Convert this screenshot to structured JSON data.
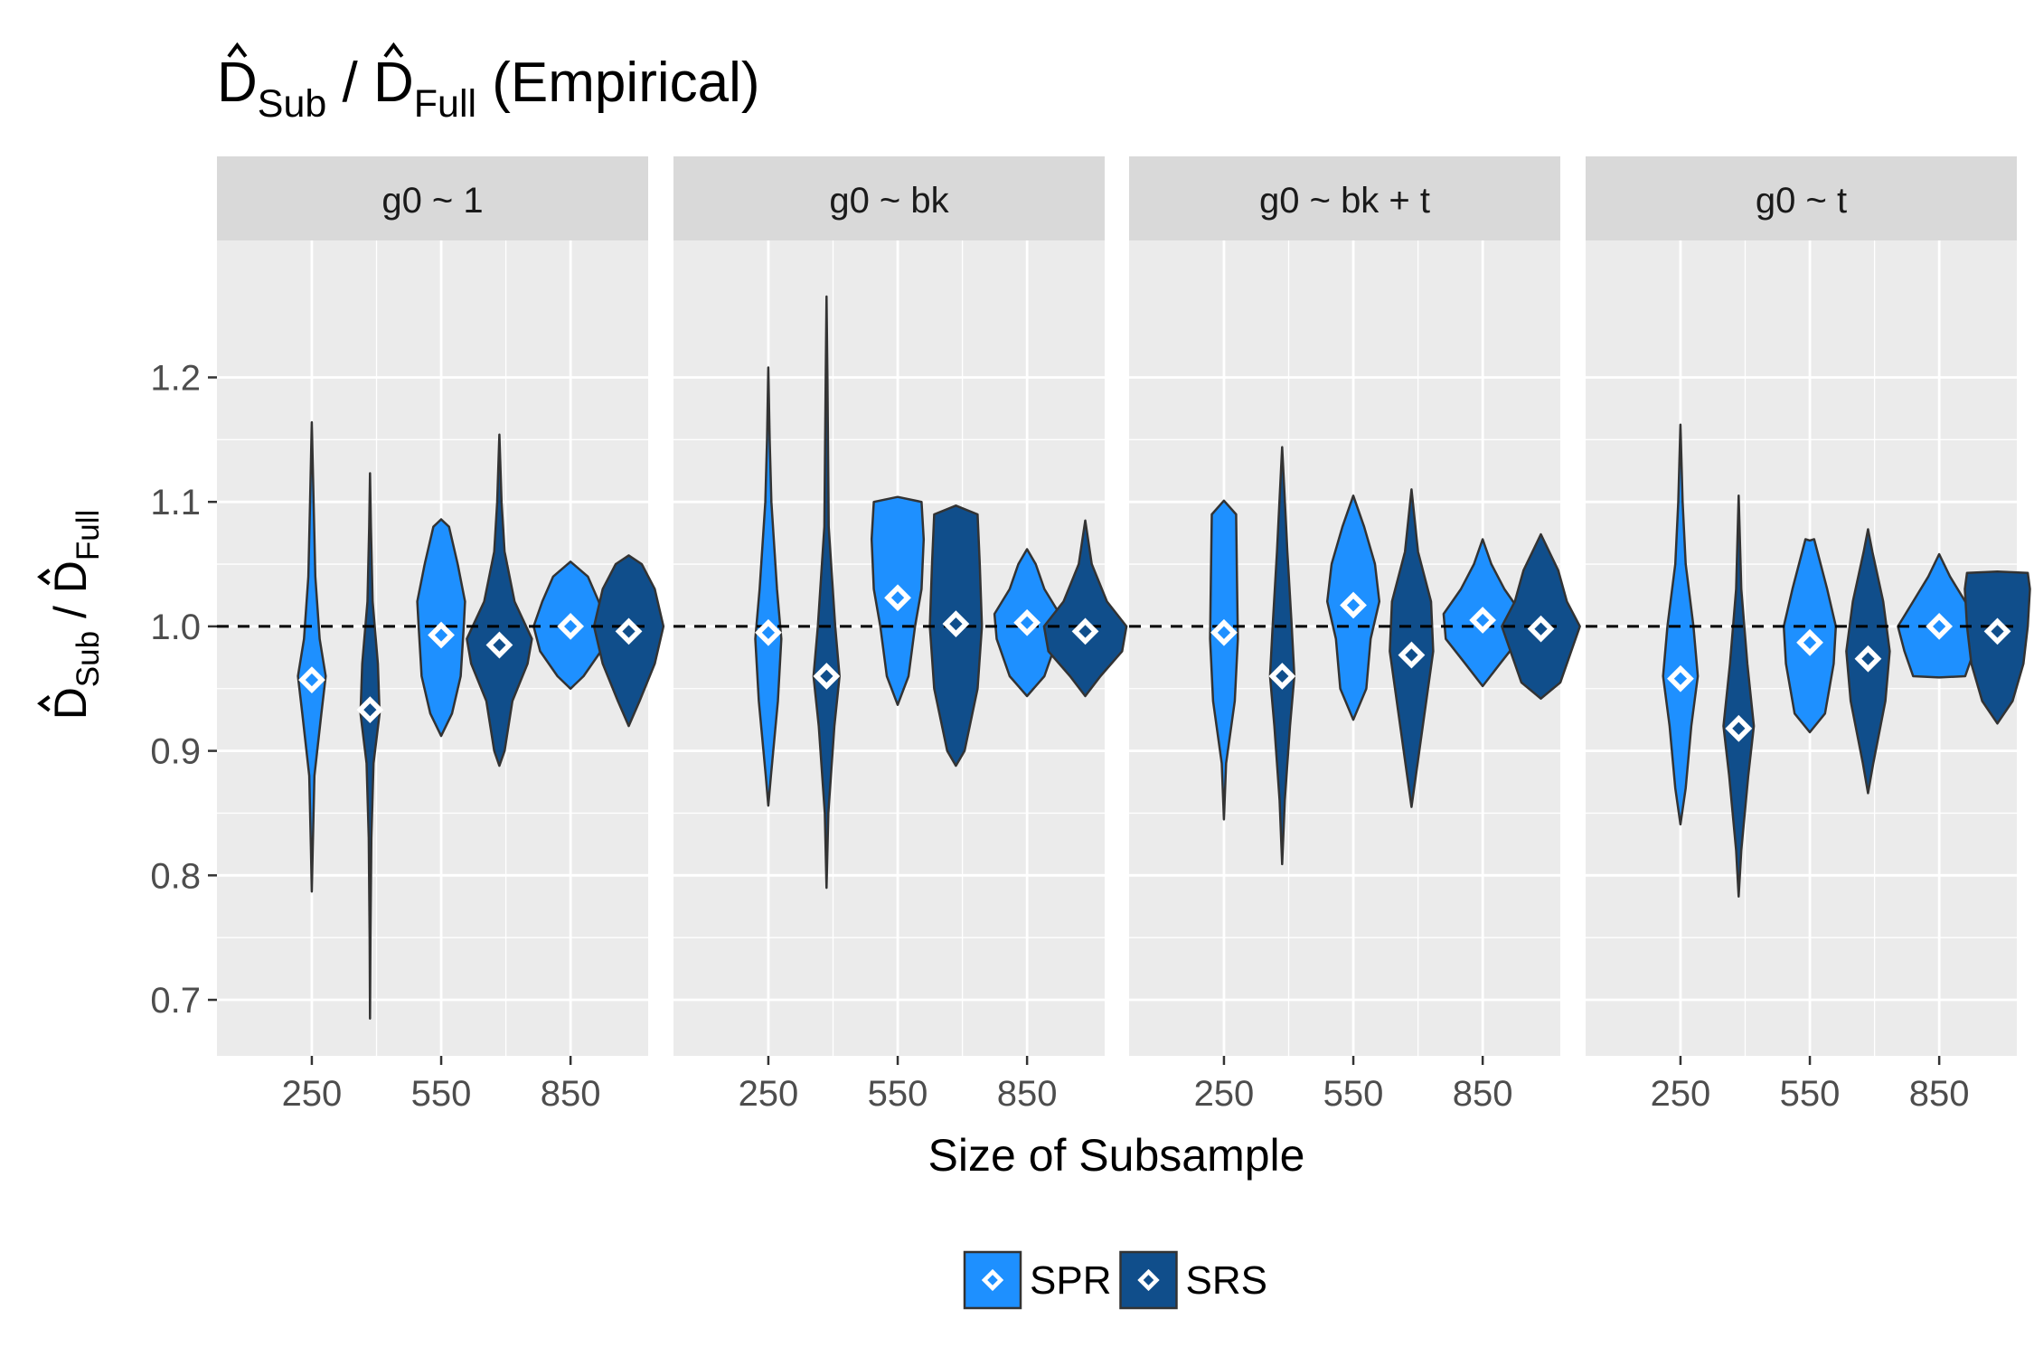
{
  "chart_data": {
    "type": "violin",
    "title": {
      "main": "D",
      "sub1": "Sub",
      "sep": " / ",
      "main2": "D",
      "sub2": "Full",
      "suffix": " (Empirical)"
    },
    "xlabel": "Size of Subsample",
    "ylabel": {
      "main": "D",
      "sub1": "Sub",
      "sep": " / ",
      "main2": "D",
      "sub2": "Full"
    },
    "ylim": [
      0.655,
      1.31
    ],
    "yticks": [
      0.7,
      0.8,
      0.9,
      1.0,
      1.1,
      1.2
    ],
    "ytick_labels": [
      "0.7",
      "0.8",
      "0.9",
      "1.0",
      "1.1",
      "1.2"
    ],
    "xlim": [
      30,
      1030
    ],
    "xticks": [
      250,
      550,
      850
    ],
    "xtick_labels": [
      "250",
      "550",
      "850"
    ],
    "reference_line": 1.0,
    "legend": {
      "position": "bottom",
      "entries": [
        {
          "name": "SPR",
          "color": "#1e90ff"
        },
        {
          "name": "SRS",
          "color": "#104e8b"
        }
      ]
    },
    "panels": [
      {
        "label": "g0 ~ 1",
        "violins": [
          {
            "series": "SPR",
            "x": 250,
            "center": 0.957,
            "shape": [
              [
                0.787,
                0.0
              ],
              [
                0.82,
                0.02
              ],
              [
                0.88,
                0.06
              ],
              [
                0.93,
                0.22
              ],
              [
                0.96,
                0.32
              ],
              [
                0.99,
                0.18
              ],
              [
                1.04,
                0.08
              ],
              [
                1.1,
                0.04
              ],
              [
                1.164,
                0.0
              ]
            ]
          },
          {
            "series": "SRS",
            "x": 385,
            "center": 0.933,
            "shape": [
              [
                0.685,
                0.0
              ],
              [
                0.75,
                0.01
              ],
              [
                0.83,
                0.03
              ],
              [
                0.89,
                0.08
              ],
              [
                0.93,
                0.22
              ],
              [
                0.97,
                0.18
              ],
              [
                1.02,
                0.06
              ],
              [
                1.08,
                0.02
              ],
              [
                1.123,
                0.0
              ]
            ]
          },
          {
            "series": "SPR",
            "x": 550,
            "center": 0.993,
            "shape": [
              [
                0.912,
                0.0
              ],
              [
                0.93,
                0.25
              ],
              [
                0.96,
                0.45
              ],
              [
                1.0,
                0.52
              ],
              [
                1.02,
                0.55
              ],
              [
                1.05,
                0.38
              ],
              [
                1.08,
                0.18
              ],
              [
                1.086,
                0.0
              ]
            ]
          },
          {
            "series": "SRS",
            "x": 685,
            "center": 0.985,
            "shape": [
              [
                0.888,
                0.0
              ],
              [
                0.9,
                0.12
              ],
              [
                0.94,
                0.3
              ],
              [
                0.97,
                0.65
              ],
              [
                0.99,
                0.75
              ],
              [
                1.02,
                0.35
              ],
              [
                1.06,
                0.12
              ],
              [
                1.1,
                0.05
              ],
              [
                1.154,
                0.0
              ]
            ]
          },
          {
            "series": "SPR",
            "x": 850,
            "center": 1.0,
            "shape": [
              [
                0.95,
                0.0
              ],
              [
                0.96,
                0.3
              ],
              [
                0.98,
                0.7
              ],
              [
                1.0,
                0.85
              ],
              [
                1.02,
                0.65
              ],
              [
                1.04,
                0.4
              ],
              [
                1.052,
                0.0
              ]
            ]
          },
          {
            "series": "SRS",
            "x": 985,
            "center": 0.996,
            "shape": [
              [
                0.92,
                0.0
              ],
              [
                0.94,
                0.25
              ],
              [
                0.97,
                0.6
              ],
              [
                1.0,
                0.8
              ],
              [
                1.03,
                0.6
              ],
              [
                1.05,
                0.3
              ],
              [
                1.057,
                0.0
              ]
            ]
          }
        ]
      },
      {
        "label": "g0 ~ bk",
        "violins": [
          {
            "series": "SPR",
            "x": 250,
            "center": 0.995,
            "shape": [
              [
                0.856,
                0.0
              ],
              [
                0.88,
                0.06
              ],
              [
                0.94,
                0.22
              ],
              [
                0.99,
                0.3
              ],
              [
                1.03,
                0.2
              ],
              [
                1.1,
                0.07
              ],
              [
                1.15,
                0.03
              ],
              [
                1.208,
                0.0
              ]
            ]
          },
          {
            "series": "SRS",
            "x": 385,
            "center": 0.96,
            "shape": [
              [
                0.79,
                0.0
              ],
              [
                0.85,
                0.04
              ],
              [
                0.92,
                0.18
              ],
              [
                0.96,
                0.3
              ],
              [
                1.0,
                0.2
              ],
              [
                1.08,
                0.05
              ],
              [
                1.2,
                0.02
              ],
              [
                1.265,
                0.0
              ]
            ]
          },
          {
            "series": "SPR",
            "x": 550,
            "center": 1.023,
            "shape": [
              [
                0.937,
                0.0
              ],
              [
                0.96,
                0.25
              ],
              [
                1.0,
                0.4
              ],
              [
                1.03,
                0.55
              ],
              [
                1.07,
                0.6
              ],
              [
                1.1,
                0.55
              ],
              [
                1.104,
                0.0
              ]
            ]
          },
          {
            "series": "SRS",
            "x": 685,
            "center": 1.002,
            "shape": [
              [
                0.888,
                0.0
              ],
              [
                0.9,
                0.2
              ],
              [
                0.95,
                0.5
              ],
              [
                1.0,
                0.6
              ],
              [
                1.05,
                0.55
              ],
              [
                1.09,
                0.5
              ],
              [
                1.097,
                0.0
              ]
            ]
          },
          {
            "series": "SPR",
            "x": 850,
            "center": 1.003,
            "shape": [
              [
                0.944,
                0.0
              ],
              [
                0.96,
                0.4
              ],
              [
                0.99,
                0.7
              ],
              [
                1.01,
                0.75
              ],
              [
                1.03,
                0.4
              ],
              [
                1.05,
                0.2
              ],
              [
                1.062,
                0.0
              ]
            ]
          },
          {
            "series": "SRS",
            "x": 985,
            "center": 0.996,
            "shape": [
              [
                0.944,
                0.0
              ],
              [
                0.96,
                0.35
              ],
              [
                0.98,
                0.85
              ],
              [
                1.0,
                0.95
              ],
              [
                1.02,
                0.5
              ],
              [
                1.05,
                0.15
              ],
              [
                1.085,
                0.0
              ]
            ]
          }
        ]
      },
      {
        "label": "g0 ~ bk + t",
        "violins": [
          {
            "series": "SPR",
            "x": 250,
            "center": 0.995,
            "shape": [
              [
                0.845,
                0.0
              ],
              [
                0.89,
                0.05
              ],
              [
                0.94,
                0.25
              ],
              [
                0.99,
                0.32
              ],
              [
                1.04,
                0.3
              ],
              [
                1.09,
                0.28
              ],
              [
                1.101,
                0.0
              ]
            ]
          },
          {
            "series": "SRS",
            "x": 385,
            "center": 0.96,
            "shape": [
              [
                0.809,
                0.0
              ],
              [
                0.86,
                0.06
              ],
              [
                0.92,
                0.18
              ],
              [
                0.96,
                0.28
              ],
              [
                1.0,
                0.22
              ],
              [
                1.06,
                0.12
              ],
              [
                1.144,
                0.0
              ]
            ]
          },
          {
            "series": "SPR",
            "x": 550,
            "center": 1.017,
            "shape": [
              [
                0.925,
                0.0
              ],
              [
                0.95,
                0.3
              ],
              [
                0.99,
                0.4
              ],
              [
                1.02,
                0.6
              ],
              [
                1.05,
                0.5
              ],
              [
                1.08,
                0.25
              ],
              [
                1.105,
                0.0
              ]
            ]
          },
          {
            "series": "SRS",
            "x": 685,
            "center": 0.977,
            "shape": [
              [
                0.855,
                0.0
              ],
              [
                0.88,
                0.1
              ],
              [
                0.93,
                0.3
              ],
              [
                0.98,
                0.5
              ],
              [
                1.02,
                0.45
              ],
              [
                1.06,
                0.15
              ],
              [
                1.11,
                0.0
              ]
            ]
          },
          {
            "series": "SPR",
            "x": 850,
            "center": 1.005,
            "shape": [
              [
                0.952,
                0.0
              ],
              [
                0.97,
                0.4
              ],
              [
                0.99,
                0.85
              ],
              [
                1.01,
                0.9
              ],
              [
                1.03,
                0.5
              ],
              [
                1.05,
                0.2
              ],
              [
                1.07,
                0.0
              ]
            ]
          },
          {
            "series": "SRS",
            "x": 985,
            "center": 0.998,
            "shape": [
              [
                0.942,
                0.0
              ],
              [
                0.955,
                0.45
              ],
              [
                0.98,
                0.7
              ],
              [
                1.0,
                0.9
              ],
              [
                1.02,
                0.6
              ],
              [
                1.045,
                0.4
              ],
              [
                1.074,
                0.0
              ]
            ]
          }
        ]
      },
      {
        "label": "g0 ~ t",
        "violins": [
          {
            "series": "SPR",
            "x": 250,
            "center": 0.958,
            "shape": [
              [
                0.841,
                0.0
              ],
              [
                0.87,
                0.12
              ],
              [
                0.92,
                0.25
              ],
              [
                0.96,
                0.4
              ],
              [
                1.0,
                0.3
              ],
              [
                1.05,
                0.12
              ],
              [
                1.1,
                0.05
              ],
              [
                1.162,
                0.0
              ]
            ]
          },
          {
            "series": "SRS",
            "x": 385,
            "center": 0.918,
            "shape": [
              [
                0.783,
                0.0
              ],
              [
                0.82,
                0.06
              ],
              [
                0.88,
                0.22
              ],
              [
                0.92,
                0.35
              ],
              [
                0.97,
                0.2
              ],
              [
                1.03,
                0.06
              ],
              [
                1.105,
                0.0
              ]
            ]
          },
          {
            "series": "SPR",
            "x": 550,
            "center": 0.987,
            "shape": [
              [
                0.915,
                0.0
              ],
              [
                0.93,
                0.35
              ],
              [
                0.97,
                0.55
              ],
              [
                1.0,
                0.6
              ],
              [
                1.03,
                0.4
              ],
              [
                1.07,
                0.1
              ],
              [
                1.069,
                0.0
              ]
            ]
          },
          {
            "series": "SRS",
            "x": 685,
            "center": 0.974,
            "shape": [
              [
                0.866,
                0.0
              ],
              [
                0.89,
                0.12
              ],
              [
                0.94,
                0.4
              ],
              [
                0.98,
                0.5
              ],
              [
                1.02,
                0.35
              ],
              [
                1.06,
                0.1
              ],
              [
                1.078,
                0.0
              ]
            ]
          },
          {
            "series": "SPR",
            "x": 850,
            "center": 1.0,
            "shape": [
              [
                0.959,
                0.0
              ],
              [
                0.96,
                0.6
              ],
              [
                0.98,
                0.8
              ],
              [
                1.0,
                0.95
              ],
              [
                1.02,
                0.6
              ],
              [
                1.04,
                0.25
              ],
              [
                1.058,
                0.0
              ]
            ]
          },
          {
            "series": "SRS",
            "x": 985,
            "center": 0.996,
            "shape": [
              [
                0.922,
                0.0
              ],
              [
                0.94,
                0.35
              ],
              [
                0.97,
                0.6
              ],
              [
                1.0,
                0.7
              ],
              [
                1.03,
                0.75
              ],
              [
                1.043,
                0.7
              ],
              [
                1.044,
                0.0
              ]
            ]
          }
        ]
      }
    ]
  }
}
